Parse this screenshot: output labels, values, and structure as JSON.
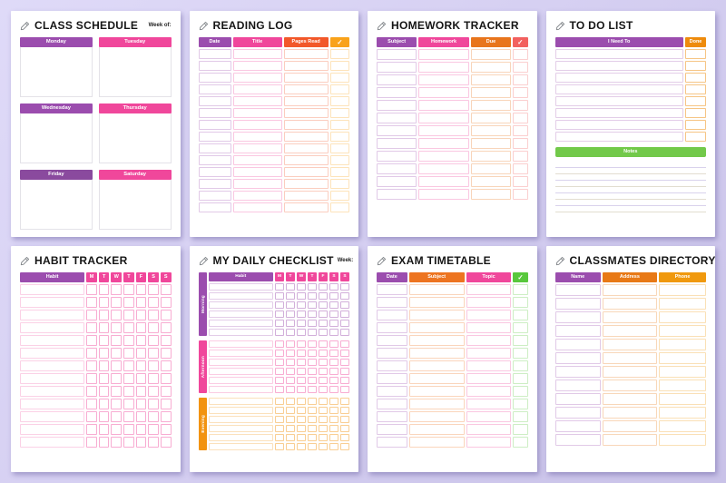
{
  "background": "#d6d0f2",
  "pages": [
    {
      "id": "class-schedule",
      "title": "CLASS SCHEDULE",
      "week_label": "Week of:",
      "days": [
        {
          "label": "Monday",
          "color": "#9b4dae"
        },
        {
          "label": "Tuesday",
          "color": "#f0479b"
        },
        {
          "label": "Wednesday",
          "color": "#9b4dae"
        },
        {
          "label": "Thursday",
          "color": "#f0479b"
        },
        {
          "label": "Friday",
          "color": "#8a4a9e"
        },
        {
          "label": "Saturday",
          "color": "#f0479b"
        }
      ]
    },
    {
      "id": "reading-log",
      "title": "READING LOG",
      "columns": [
        {
          "label": "Date",
          "color": "#9b4dae",
          "flex": 22
        },
        {
          "label": "Title",
          "color": "#f0479b",
          "flex": 33
        },
        {
          "label": "Pages Read",
          "color": "#f2582a",
          "flex": 30
        },
        {
          "label": "✓",
          "color": "#f9a21a",
          "flex": 13
        }
      ],
      "row_count": 14
    },
    {
      "id": "homework-tracker",
      "title": "HOMEWORK TRACKER",
      "columns": [
        {
          "label": "Subject",
          "color": "#9b4dae",
          "flex": 27
        },
        {
          "label": "Homework",
          "color": "#f0479b",
          "flex": 34
        },
        {
          "label": "Due",
          "color": "#e8751c",
          "flex": 27
        },
        {
          "label": "✓",
          "color": "#f2615f",
          "flex": 10
        }
      ],
      "row_count": 12
    },
    {
      "id": "to-do-list",
      "title": "TO DO LIST",
      "columns": [
        {
          "label": "I Need To",
          "color": "#9b4dae",
          "flex": 86
        },
        {
          "label": "Done",
          "color": "#ee8b0c",
          "flex": 14
        }
      ],
      "row_count": 8,
      "notes_label": "Notes",
      "notes_color": "#72c94a",
      "notes_lines": 8
    },
    {
      "id": "habit-tracker",
      "title": "HABIT TRACKER",
      "habit_label": "Habit",
      "habit_color": "#9b4dae",
      "day_color": "#f0479b",
      "day_letters": [
        "M",
        "T",
        "W",
        "T",
        "F",
        "S",
        "S"
      ],
      "row_count": 13
    },
    {
      "id": "daily-checklist",
      "title": "MY DAILY CHECKLIST",
      "week_label": "Week:",
      "habit_label": "Habit",
      "habit_color": "#9b4dae",
      "day_color": "#f0479b",
      "day_letters": [
        "M",
        "T",
        "W",
        "T",
        "F",
        "S",
        "S"
      ],
      "sections": [
        {
          "label": "Morning",
          "color": "#9b4dae",
          "rows": 6
        },
        {
          "label": "Afternoon",
          "color": "#f0479b",
          "rows": 6
        },
        {
          "label": "Evening",
          "color": "#f2930f",
          "rows": 6
        }
      ]
    },
    {
      "id": "exam-timetable",
      "title": "EXAM TIMETABLE",
      "columns": [
        {
          "label": "Date",
          "color": "#9b4dae",
          "flex": 21
        },
        {
          "label": "Subject",
          "color": "#ed7420",
          "flex": 38
        },
        {
          "label": "Topic",
          "color": "#f0479b",
          "flex": 31
        },
        {
          "label": "✓",
          "color": "#58c83c",
          "flex": 10
        }
      ],
      "row_count": 13
    },
    {
      "id": "classmates-directory",
      "title": "CLASSMATES DIRECTORY",
      "columns": [
        {
          "label": "Name",
          "color": "#9b4dae",
          "flex": 31
        },
        {
          "label": "Address",
          "color": "#e87916",
          "flex": 37
        },
        {
          "label": "Phone",
          "color": "#f0990e",
          "flex": 32
        }
      ],
      "row_count": 12
    }
  ]
}
